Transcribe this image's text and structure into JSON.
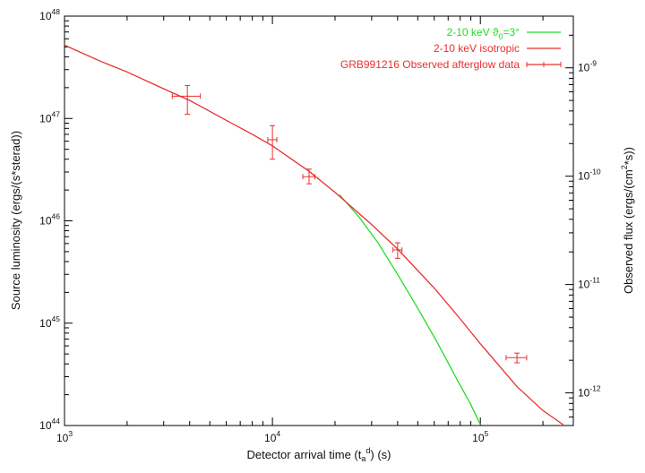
{
  "chart_data": {
    "type": "line",
    "title": "",
    "xlabel": "Detector arrival time (t_a^d) (s)",
    "xlabel_parts": {
      "main": "Detector arrival time (t",
      "sub": "a",
      "sup": "d",
      "tail": ") (s)"
    },
    "ylabel": "Source luminosity (ergs/(s*sterad))",
    "y2label": "Observed flux (ergs/(cm^2*s))",
    "y2label_parts": {
      "main": "Observed flux (ergs/(cm",
      "sup": "2",
      "tail": "*s))"
    },
    "xscale": "log",
    "yscale": "log",
    "xlim": [
      1000,
      280000
    ],
    "ylim": [
      1e+44,
      1e+48
    ],
    "y2lim": [
      5e-13,
      3e-09
    ],
    "grid": false,
    "legend_position": "top-right",
    "x_ticks": [
      {
        "base": "10",
        "exp": "3",
        "value": 1000
      },
      {
        "base": "10",
        "exp": "4",
        "value": 10000
      },
      {
        "base": "10",
        "exp": "5",
        "value": 100000
      }
    ],
    "y_ticks": [
      {
        "base": "10",
        "exp": "44",
        "value": 1e+44
      },
      {
        "base": "10",
        "exp": "45",
        "value": 1e+45
      },
      {
        "base": "10",
        "exp": "46",
        "value": 1e+46
      },
      {
        "base": "10",
        "exp": "47",
        "value": 1e+47
      },
      {
        "base": "10",
        "exp": "48",
        "value": 1e+48
      }
    ],
    "y2_ticks": [
      {
        "base": "10",
        "exp": "-12",
        "value": 1e-12
      },
      {
        "base": "10",
        "exp": "-11",
        "value": 1e-11
      },
      {
        "base": "10",
        "exp": "-10",
        "value": 1e-10
      },
      {
        "base": "10",
        "exp": "-9",
        "value": 1e-09
      }
    ],
    "series": [
      {
        "name": "2-10 keV ϑ0=3°",
        "legend_parts": {
          "main": "2-10 keV ϑ",
          "sub": "0",
          "tail": "=3°"
        },
        "kind": "line",
        "color": "#22dd22",
        "x": [
          21000,
          26000,
          32000,
          40000,
          50000,
          62000,
          76000,
          90000,
          100000
        ],
        "y": [
          1.8e+46,
          1.1e+46,
          6.2e+45,
          3e+45,
          1.4e+45,
          6.5e+44,
          3e+44,
          1.6e+44,
          1.02e+44
        ]
      },
      {
        "name": "2-10 keV isotropic",
        "kind": "line",
        "color": "#e83030",
        "x": [
          1000,
          1500,
          2000,
          3000,
          4000,
          6000,
          8000,
          10000,
          15000,
          20000,
          30000,
          40000,
          60000,
          80000,
          100000,
          150000,
          200000,
          250000
        ],
        "y": [
          5.2e+47,
          3.6e+47,
          2.85e+47,
          1.95e+47,
          1.5e+47,
          9.6e+46,
          7e+46,
          5.4e+46,
          3.05e+46,
          1.9e+46,
          9.2e+45,
          5.3e+45,
          2.2e+45,
          1.1e+45,
          6.3e+44,
          2.4e+44,
          1.4e+44,
          1.02e+44
        ]
      },
      {
        "name": "GRB991216 Observed afterglow data",
        "kind": "errorbar",
        "color": "#e83030",
        "points": [
          {
            "x": 3900,
            "y": 1.65e+47,
            "xlo": 3300,
            "xhi": 4500,
            "ylo": 1.1e+47,
            "yhi": 2.1e+47
          },
          {
            "x": 10000,
            "y": 6.2e+46,
            "xlo": 9500,
            "xhi": 10500,
            "ylo": 4e+46,
            "yhi": 8.5e+46
          },
          {
            "x": 15000,
            "y": 2.7e+46,
            "xlo": 14000,
            "xhi": 16000,
            "ylo": 2.3e+46,
            "yhi": 3.2e+46
          },
          {
            "x": 40000,
            "y": 5.2e+45,
            "xlo": 38000,
            "xhi": 42000,
            "ylo": 4.3e+45,
            "yhi": 6.1e+45
          },
          {
            "x": 150000,
            "y": 4.6e+44,
            "xlo": 133000,
            "xhi": 167000,
            "ylo": 4.1e+44,
            "yhi": 5.1e+44
          }
        ]
      }
    ]
  }
}
